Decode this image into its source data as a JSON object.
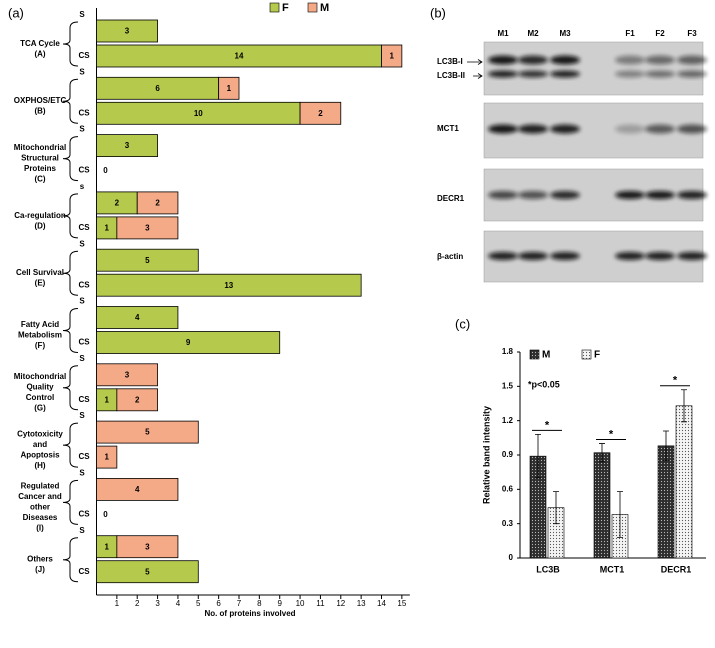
{
  "chart_data": [
    {
      "type": "bar",
      "orientation": "horizontal",
      "stacked": true,
      "label": "(a)",
      "groups": [
        [
          "TCA Cycle",
          "(A)"
        ],
        [
          "OXPHOS/ETC",
          "(B)"
        ],
        [
          "Mitochondrial",
          "Structural",
          "Proteins",
          "(C)"
        ],
        [
          "Ca-regulation",
          "(D)"
        ],
        [
          "Cell Survival",
          "(E)"
        ],
        [
          "Fatty Acid",
          "Metabolism",
          "(F)"
        ],
        [
          "Mitochondrial",
          "Quality",
          "Control",
          "(G)"
        ],
        [
          "Cytotoxicity",
          "and",
          "Apoptosis",
          "(H)"
        ],
        [
          "Regulated",
          "Cancer and",
          "other",
          "Diseases",
          "(I)"
        ],
        [
          "Others",
          "(J)"
        ]
      ],
      "categories": [
        "S",
        "CS",
        "S",
        "CS",
        "S",
        "CS",
        "s",
        "CS",
        "S",
        "CS",
        "S",
        "CS",
        "S",
        "CS",
        "S",
        "CS",
        "S",
        "CS",
        "S",
        "CS"
      ],
      "series": [
        {
          "name": "F",
          "color": "#b5c94c",
          "values": [
            3,
            14,
            6,
            10,
            3,
            0,
            2,
            1,
            5,
            13,
            4,
            9,
            null,
            1,
            null,
            null,
            null,
            0,
            1,
            5
          ]
        },
        {
          "name": "M",
          "color": "#f4a987",
          "values": [
            null,
            1,
            1,
            2,
            null,
            null,
            2,
            3,
            null,
            null,
            null,
            null,
            3,
            2,
            5,
            1,
            4,
            null,
            3,
            null
          ]
        }
      ],
      "xlim": [
        0,
        15
      ],
      "xticks": [
        1,
        2,
        3,
        4,
        5,
        6,
        7,
        8,
        9,
        10,
        11,
        12,
        13,
        14,
        15
      ],
      "xlabel": "No. of proteins involved"
    },
    {
      "type": "bar",
      "orientation": "vertical",
      "label": "(c)",
      "categories": [
        "LC3B",
        "MCT1",
        "DECR1"
      ],
      "series": [
        {
          "name": "M",
          "color": "#2e2e2e",
          "values": [
            0.89,
            0.92,
            0.98
          ],
          "errors": [
            0.19,
            0.08,
            0.13
          ]
        },
        {
          "name": "F",
          "color": "#f4f4f4",
          "values": [
            0.44,
            0.38,
            1.33
          ],
          "errors": [
            0.14,
            0.2,
            0.14
          ]
        }
      ],
      "ylim": [
        0,
        1.8
      ],
      "yticks": [
        0,
        0.3,
        0.6,
        0.9,
        1.2,
        1.5,
        1.8
      ],
      "ylabel": "Relative band intensity",
      "annotation": "*p<0.05",
      "significance": [
        "*",
        "*",
        "*"
      ]
    }
  ],
  "blot": {
    "label": "(b)",
    "lanes": [
      "M1",
      "M2",
      "M3",
      "F1",
      "F2",
      "F3"
    ],
    "rows": [
      "LC3B-I",
      "LC3B-II",
      "MCT1",
      "DECR1",
      "β-actin"
    ]
  }
}
